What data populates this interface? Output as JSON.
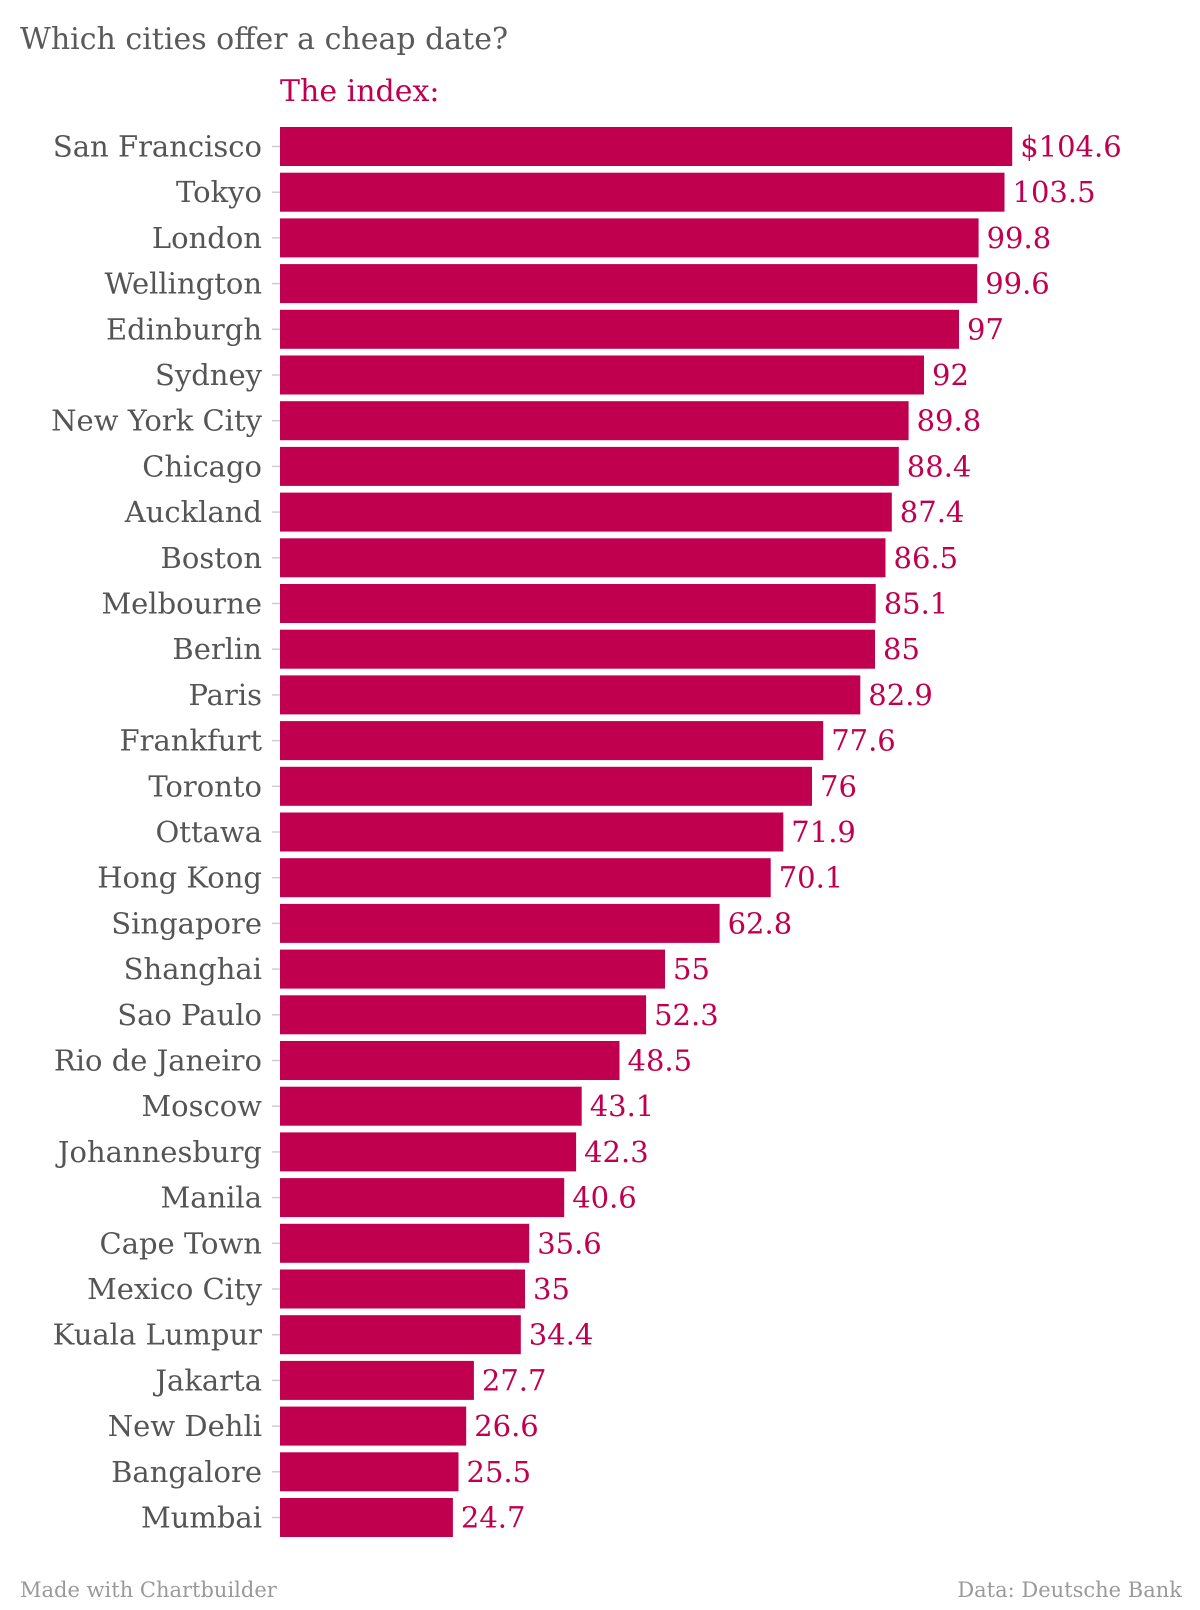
{
  "chart_data": {
    "type": "bar",
    "orientation": "horizontal",
    "title": "Which cities offer a cheap date?",
    "series_label": "The index:",
    "value_prefix": "$",
    "categories": [
      "San Francisco",
      "Tokyo",
      "London",
      "Wellington",
      "Edinburgh",
      "Sydney",
      "New York City",
      "Chicago",
      "Auckland",
      "Boston",
      "Melbourne",
      "Berlin",
      "Paris",
      "Frankfurt",
      "Toronto",
      "Ottawa",
      "Hong Kong",
      "Singapore",
      "Shanghai",
      "Sao Paulo",
      "Rio de Janeiro",
      "Moscow",
      "Johannesburg",
      "Manila",
      "Cape Town",
      "Mexico City",
      "Kuala Lumpur",
      "Jakarta",
      "New Dehli",
      "Bangalore",
      "Mumbai"
    ],
    "values": [
      104.6,
      103.5,
      99.8,
      99.6,
      97,
      92,
      89.8,
      88.4,
      87.4,
      86.5,
      85.1,
      85,
      82.9,
      77.6,
      76,
      71.9,
      70.1,
      62.8,
      55,
      52.3,
      48.5,
      43.1,
      42.3,
      40.6,
      35.6,
      35,
      34.4,
      27.7,
      26.6,
      25.5,
      24.7
    ],
    "value_labels": [
      "$104.6",
      "103.5",
      "99.8",
      "99.6",
      "97",
      "92",
      "89.8",
      "88.4",
      "87.4",
      "86.5",
      "85.1",
      "85",
      "82.9",
      "77.6",
      "76",
      "71.9",
      "70.1",
      "62.8",
      "55",
      "52.3",
      "48.5",
      "43.1",
      "42.3",
      "40.6",
      "35.6",
      "35",
      "34.4",
      "27.7",
      "26.6",
      "25.5",
      "24.7"
    ],
    "bar_color": "#c0004e",
    "grid": false
  },
  "footer": {
    "credit": "Made with Chartbuilder",
    "source": "Data: Deutsche Bank"
  }
}
